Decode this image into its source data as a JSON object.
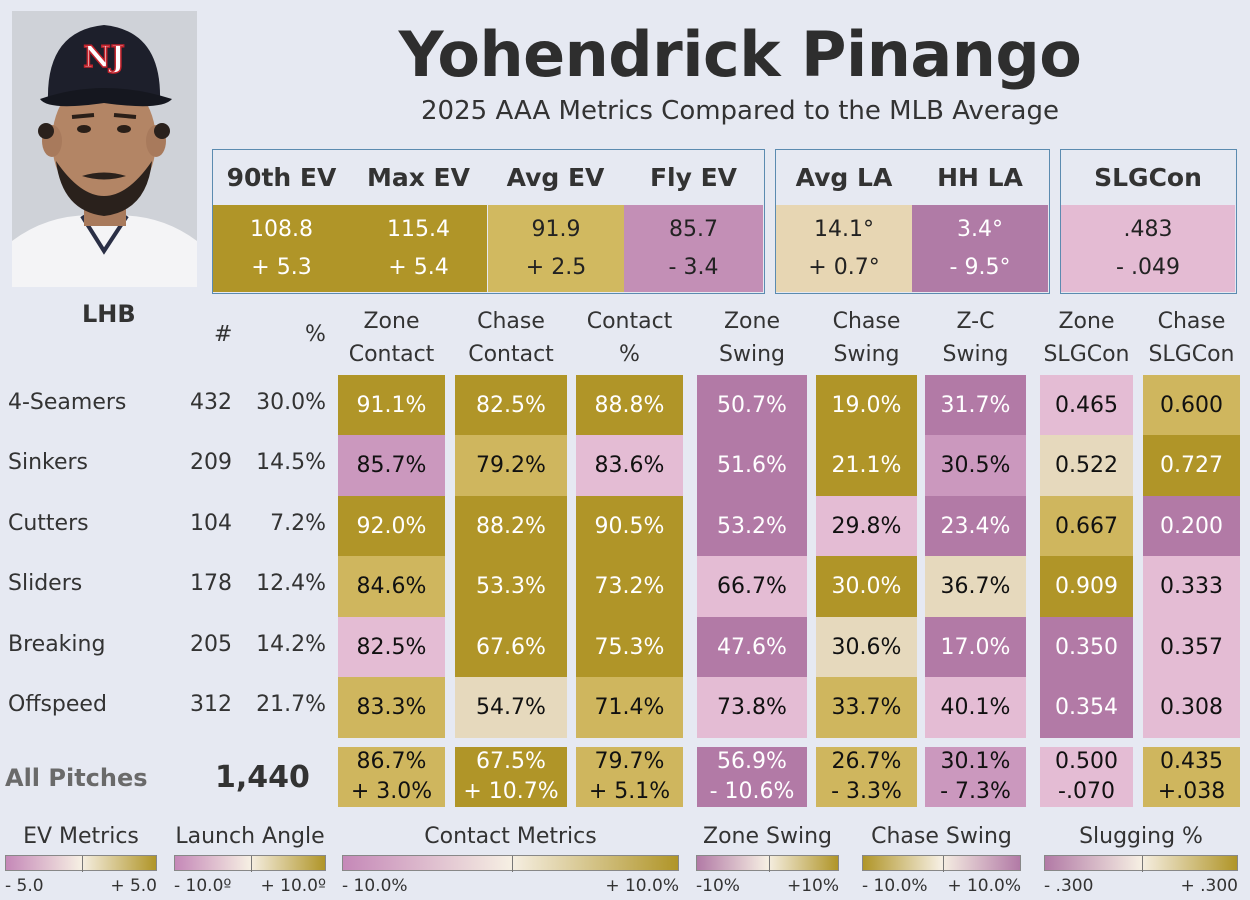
{
  "player": {
    "name": "Yohendrick Pinango",
    "subtitle": "2025 AAA Metrics Compared to the MLB Average",
    "cap_logo": "NJ"
  },
  "colors": {
    "gold_dark": "#b09528",
    "gold_mid": "#cfb65e",
    "gold_light": "#e5d8bc",
    "pink_light": "#e6bcd6",
    "pink_mid": "#cd9cc2",
    "pink_dark": "#b27aa6",
    "neutral": "#f2ead8"
  },
  "ev_box": {
    "headers": [
      "90th EV",
      "Max EV",
      "Avg EV",
      "Fly EV"
    ],
    "values": [
      "108.8",
      "115.4",
      "91.9",
      "85.7"
    ],
    "diffs": [
      "+ 5.3",
      "+ 5.4",
      "+ 2.5",
      "- 3.4"
    ]
  },
  "la_box": {
    "headers": [
      "Avg LA",
      "HH LA"
    ],
    "values": [
      "14.1°",
      "3.4°"
    ],
    "diffs": [
      "+ 0.7°",
      "- 9.5°"
    ]
  },
  "slg_box": {
    "header": "SLGCon",
    "value": ".483",
    "diff": "- .049"
  },
  "table": {
    "hand": "LHB",
    "count_header": "#",
    "pct_header": "%",
    "metric_headers": [
      [
        "Zone",
        "Contact"
      ],
      [
        "Chase",
        "Contact"
      ],
      [
        "Contact",
        "%"
      ],
      [
        "Zone",
        "Swing"
      ],
      [
        "Chase",
        "Swing"
      ],
      [
        "Z-C",
        "Swing"
      ],
      [
        "Zone",
        "SLGCon"
      ],
      [
        "Chase",
        "SLGCon"
      ]
    ],
    "rows": [
      {
        "pitch": "4-Seamers",
        "count": "432",
        "pct": "30.0%",
        "values": [
          "91.1%",
          "82.5%",
          "88.8%",
          "50.7%",
          "19.0%",
          "31.7%",
          "0.465",
          "0.600"
        ]
      },
      {
        "pitch": "Sinkers",
        "count": "209",
        "pct": "14.5%",
        "values": [
          "85.7%",
          "79.2%",
          "83.6%",
          "51.6%",
          "21.1%",
          "30.5%",
          "0.522",
          "0.727"
        ]
      },
      {
        "pitch": "Cutters",
        "count": "104",
        "pct": "7.2%",
        "values": [
          "92.0%",
          "88.2%",
          "90.5%",
          "53.2%",
          "29.8%",
          "23.4%",
          "0.667",
          "0.200"
        ]
      },
      {
        "pitch": "Sliders",
        "count": "178",
        "pct": "12.4%",
        "values": [
          "84.6%",
          "53.3%",
          "73.2%",
          "66.7%",
          "30.0%",
          "36.7%",
          "0.909",
          "0.333"
        ]
      },
      {
        "pitch": "Breaking",
        "count": "205",
        "pct": "14.2%",
        "values": [
          "82.5%",
          "67.6%",
          "75.3%",
          "47.6%",
          "30.6%",
          "17.0%",
          "0.350",
          "0.357"
        ]
      },
      {
        "pitch": "Offspeed",
        "count": "312",
        "pct": "21.7%",
        "values": [
          "83.3%",
          "54.7%",
          "71.4%",
          "73.8%",
          "33.7%",
          "40.1%",
          "0.354",
          "0.308"
        ]
      }
    ],
    "totals": {
      "label": "All Pitches",
      "count": "1,440",
      "values": [
        "86.7%",
        "67.5%",
        "79.7%",
        "56.9%",
        "26.7%",
        "30.1%",
        "0.500",
        "0.435"
      ],
      "diffs": [
        "+ 3.0%",
        "+ 10.7%",
        "+ 5.1%",
        "- 10.6%",
        "- 3.3%",
        "- 7.3%",
        "-.070",
        "+.038"
      ]
    }
  },
  "legend": [
    {
      "title": "EV Metrics",
      "min": "- 5.0",
      "max": "+ 5.0"
    },
    {
      "title": "Launch Angle",
      "min": "- 10.0º",
      "max": "+ 10.0º"
    },
    {
      "title": "Contact Metrics",
      "min": "- 10.0%",
      "max": "+ 10.0%"
    },
    {
      "title": "Zone Swing",
      "min": "-10%",
      "max": "+10%"
    },
    {
      "title": "Chase Swing",
      "min": "- 10.0%",
      "max": "+ 10.0%"
    },
    {
      "title": "Slugging %",
      "min": "- .300",
      "max": "+ .300"
    }
  ]
}
